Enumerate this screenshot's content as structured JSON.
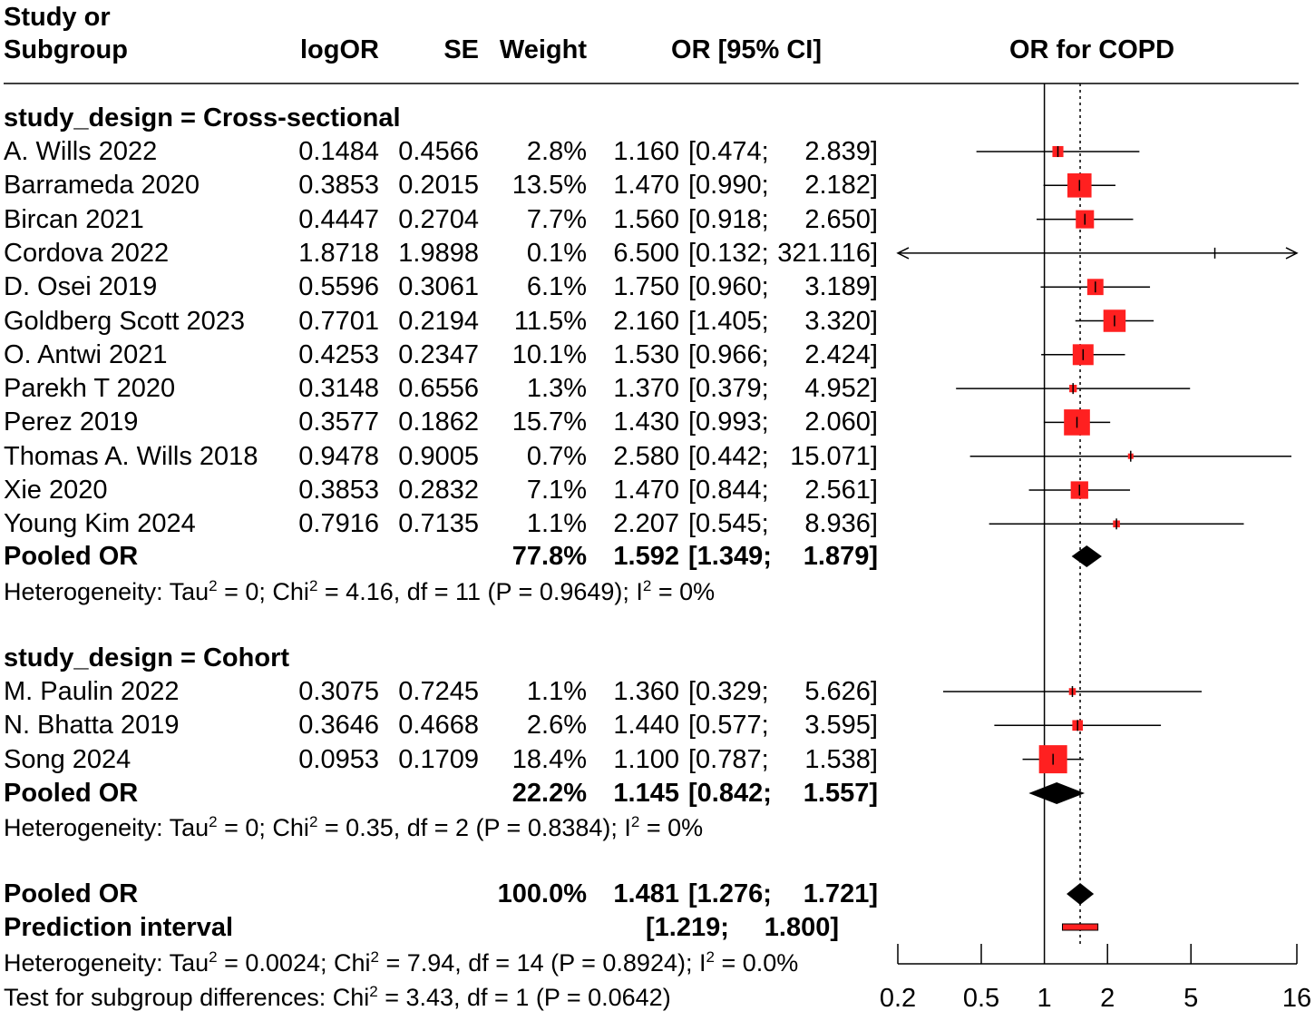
{
  "chart_data": {
    "type": "forest",
    "title": "",
    "header": {
      "study_line1": "Study or",
      "study_line2": "Subgroup",
      "logor": "logOR",
      "se": "SE",
      "weight": "Weight",
      "ci": "OR [95% CI]",
      "plot": "OR for COPD"
    },
    "x_scale": "log",
    "xlim": [
      0.2,
      16
    ],
    "x_ticks": [
      "0.2",
      "0.5",
      "1",
      "2",
      "5",
      "16"
    ],
    "null_value": 1,
    "overall_estimate_line": 1.481,
    "groups": [
      {
        "label": "study_design = Cross-sectional",
        "studies": [
          {
            "name": "A. Wills 2022",
            "logor": "0.1484",
            "se": "0.4566",
            "weight": "2.8%",
            "or": "1.160",
            "lo": "[0.474;",
            "hi": "2.839]",
            "or_v": 1.16,
            "lo_v": 0.474,
            "hi_v": 2.839,
            "w": 2.8
          },
          {
            "name": "Barrameda 2020",
            "logor": "0.3853",
            "se": "0.2015",
            "weight": "13.5%",
            "or": "1.470",
            "lo": "[0.990;",
            "hi": "2.182]",
            "or_v": 1.47,
            "lo_v": 0.99,
            "hi_v": 2.182,
            "w": 13.5
          },
          {
            "name": "Bircan 2021",
            "logor": "0.4447",
            "se": "0.2704",
            "weight": "7.7%",
            "or": "1.560",
            "lo": "[0.918;",
            "hi": "2.650]",
            "or_v": 1.56,
            "lo_v": 0.918,
            "hi_v": 2.65,
            "w": 7.7
          },
          {
            "name": "Cordova 2022",
            "logor": "1.8718",
            "se": "1.9898",
            "weight": "0.1%",
            "or": "6.500",
            "lo": "[0.132;",
            "hi": "321.116]",
            "or_v": 6.5,
            "lo_v": 0.132,
            "hi_v": 321.116,
            "w": 0.1
          },
          {
            "name": "D. Osei 2019",
            "logor": "0.5596",
            "se": "0.3061",
            "weight": "6.1%",
            "or": "1.750",
            "lo": "[0.960;",
            "hi": "3.189]",
            "or_v": 1.75,
            "lo_v": 0.96,
            "hi_v": 3.189,
            "w": 6.1
          },
          {
            "name": "Goldberg Scott 2023",
            "logor": "0.7701",
            "se": "0.2194",
            "weight": "11.5%",
            "or": "2.160",
            "lo": "[1.405;",
            "hi": "3.320]",
            "or_v": 2.16,
            "lo_v": 1.405,
            "hi_v": 3.32,
            "w": 11.5
          },
          {
            "name": "O. Antwi 2021",
            "logor": "0.4253",
            "se": "0.2347",
            "weight": "10.1%",
            "or": "1.530",
            "lo": "[0.966;",
            "hi": "2.424]",
            "or_v": 1.53,
            "lo_v": 0.966,
            "hi_v": 2.424,
            "w": 10.1
          },
          {
            "name": "Parekh T 2020",
            "logor": "0.3148",
            "se": "0.6556",
            "weight": "1.3%",
            "or": "1.370",
            "lo": "[0.379;",
            "hi": "4.952]",
            "or_v": 1.37,
            "lo_v": 0.379,
            "hi_v": 4.952,
            "w": 1.3
          },
          {
            "name": "Perez 2019",
            "logor": "0.3577",
            "se": "0.1862",
            "weight": "15.7%",
            "or": "1.430",
            "lo": "[0.993;",
            "hi": "2.060]",
            "or_v": 1.43,
            "lo_v": 0.993,
            "hi_v": 2.06,
            "w": 15.7
          },
          {
            "name": "Thomas A. Wills 2018",
            "logor": "0.9478",
            "se": "0.9005",
            "weight": "0.7%",
            "or": "2.580",
            "lo": "[0.442;",
            "hi": "15.071]",
            "or_v": 2.58,
            "lo_v": 0.442,
            "hi_v": 15.071,
            "w": 0.7
          },
          {
            "name": "Xie 2020",
            "logor": "0.3853",
            "se": "0.2832",
            "weight": "7.1%",
            "or": "1.470",
            "lo": "[0.844;",
            "hi": "2.561]",
            "or_v": 1.47,
            "lo_v": 0.844,
            "hi_v": 2.561,
            "w": 7.1
          },
          {
            "name": "Young Kim 2024",
            "logor": "0.7916",
            "se": "0.7135",
            "weight": "1.1%",
            "or": "2.207",
            "lo": "[0.545;",
            "hi": "8.936]",
            "or_v": 2.207,
            "lo_v": 0.545,
            "hi_v": 8.936,
            "w": 1.1
          }
        ],
        "pooled": {
          "label": "Pooled OR",
          "weight": "77.8%",
          "or": "1.592",
          "lo": "[1.349;",
          "hi": "1.879]",
          "or_v": 1.592,
          "lo_v": 1.349,
          "hi_v": 1.879
        },
        "het": {
          "prefix": "Heterogeneity: Tau",
          "sup1": "2",
          "mid": " = 0; Chi",
          "sup2": "2",
          "rest": " = 4.16, df = 11 (P = 0.9649); I",
          "sup3": "2",
          "end": " = 0%"
        }
      },
      {
        "label": "study_design = Cohort",
        "studies": [
          {
            "name": "M. Paulin 2022",
            "logor": "0.3075",
            "se": "0.7245",
            "weight": "1.1%",
            "or": "1.360",
            "lo": "[0.329;",
            "hi": "5.626]",
            "or_v": 1.36,
            "lo_v": 0.329,
            "hi_v": 5.626,
            "w": 1.1
          },
          {
            "name": "N. Bhatta 2019",
            "logor": "0.3646",
            "se": "0.4668",
            "weight": "2.6%",
            "or": "1.440",
            "lo": "[0.577;",
            "hi": "3.595]",
            "or_v": 1.44,
            "lo_v": 0.577,
            "hi_v": 3.595,
            "w": 2.6
          },
          {
            "name": "Song 2024",
            "logor": "0.0953",
            "se": "0.1709",
            "weight": "18.4%",
            "or": "1.100",
            "lo": "[0.787;",
            "hi": "1.538]",
            "or_v": 1.1,
            "lo_v": 0.787,
            "hi_v": 1.538,
            "w": 18.4
          }
        ],
        "pooled": {
          "label": "Pooled OR",
          "weight": "22.2%",
          "or": "1.145",
          "lo": "[0.842;",
          "hi": "1.557]",
          "or_v": 1.145,
          "lo_v": 0.842,
          "hi_v": 1.557
        },
        "het": {
          "prefix": "Heterogeneity: Tau",
          "sup1": "2",
          "mid": " = 0; Chi",
          "sup2": "2",
          "rest": " = 0.35, df = 2 (P = 0.8384); I",
          "sup3": "2",
          "end": " = 0%"
        }
      }
    ],
    "overall": {
      "label": "Pooled OR",
      "weight": "100.0%",
      "or": "1.481",
      "lo": "[1.276;",
      "hi": "1.721]",
      "or_v": 1.481,
      "lo_v": 1.276,
      "hi_v": 1.721
    },
    "prediction": {
      "label": "Prediction interval",
      "lo": "[1.219;",
      "hi": "1.800]",
      "lo_v": 1.219,
      "hi_v": 1.8
    },
    "overall_het": {
      "prefix": "Heterogeneity: Tau",
      "sup1": "2",
      "mid": " = 0.0024; Chi",
      "sup2": "2",
      "rest": " = 7.94, df = 14 (P = 0.8924); I",
      "sup3": "2",
      "end": " = 0.0%"
    },
    "subgroup_test": {
      "prefix": "Test for subgroup differences: Chi",
      "sup1": "2",
      "rest": " = 3.43, df = 1 (P = 0.0642)"
    },
    "colors": {
      "square": "#ff2020",
      "diamond": "#000000",
      "prediction": "#ff2020"
    }
  }
}
